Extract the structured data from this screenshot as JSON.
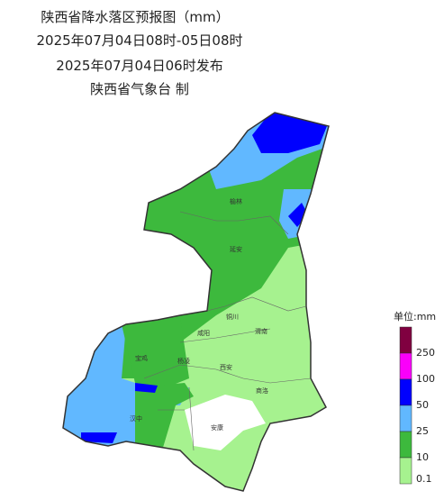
{
  "header": {
    "title": "陕西省降水落区预报图（mm）",
    "period": "2025年07月04日08时-05日08时",
    "issued": "2025年07月04日06时发布",
    "producer": "陕西省气象台 制"
  },
  "cities": [
    "榆林",
    "延安",
    "铜川",
    "渭南",
    "咸阳",
    "宝鸡",
    "杨凌",
    "西安",
    "商洛",
    "汉中",
    "安康"
  ],
  "legend": {
    "title": "单位:mm",
    "items": [
      {
        "label": 250,
        "color": "#800040"
      },
      {
        "label": 100,
        "color": "#fa00fa"
      },
      {
        "label": 50,
        "color": "#0000fe"
      },
      {
        "label": 25,
        "color": "#61b8ff"
      },
      {
        "label": 10,
        "color": "#3db93d"
      },
      {
        "label": 0.1,
        "color": "#a6f28f"
      }
    ]
  }
}
